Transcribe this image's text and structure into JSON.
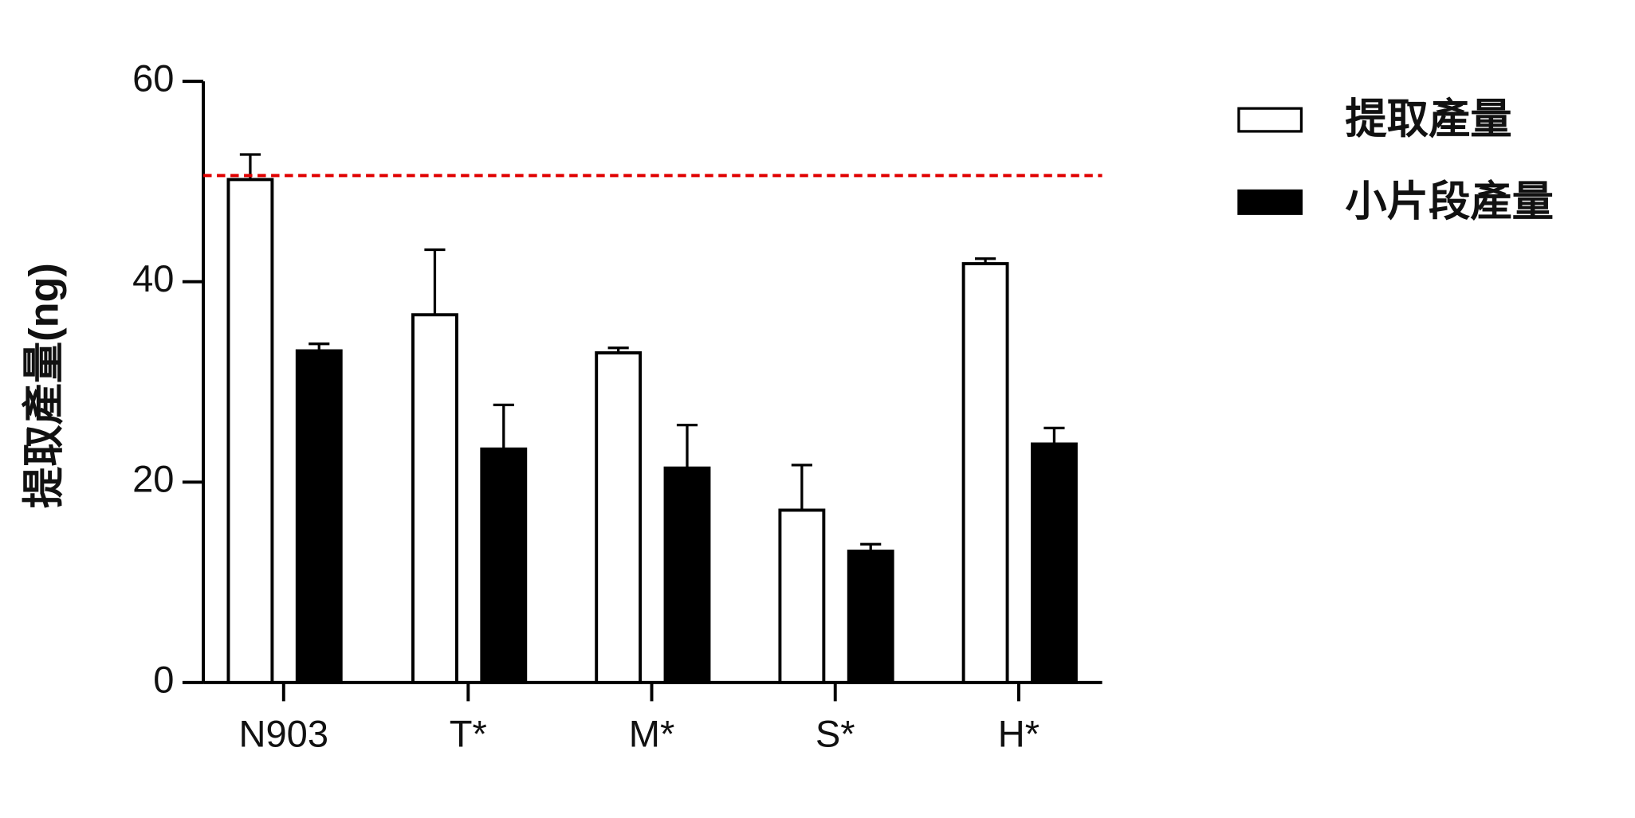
{
  "chart_data": {
    "type": "bar",
    "y_label": "提取產量(ng)",
    "categories": [
      "N903",
      "T*",
      "M*",
      "S*",
      "H*"
    ],
    "series": [
      {
        "name": "提取產量",
        "color": "#ffffff",
        "values": [
          50.2,
          36.7,
          32.9,
          17.2,
          41.8
        ],
        "errors": [
          2.5,
          6.5,
          0.5,
          4.5,
          0.5
        ]
      },
      {
        "name": "小片段產量",
        "color": "#000000",
        "values": [
          33.1,
          23.3,
          21.4,
          13.1,
          23.8
        ],
        "errors": [
          0.7,
          4.4,
          4.3,
          0.7,
          1.6
        ]
      }
    ],
    "reference_line": {
      "value": 50.6,
      "color": "#e00000"
    },
    "ylim": [
      0,
      60
    ],
    "yticks": [
      0,
      20,
      40,
      60
    ],
    "grid": false,
    "legend": "top-right"
  }
}
